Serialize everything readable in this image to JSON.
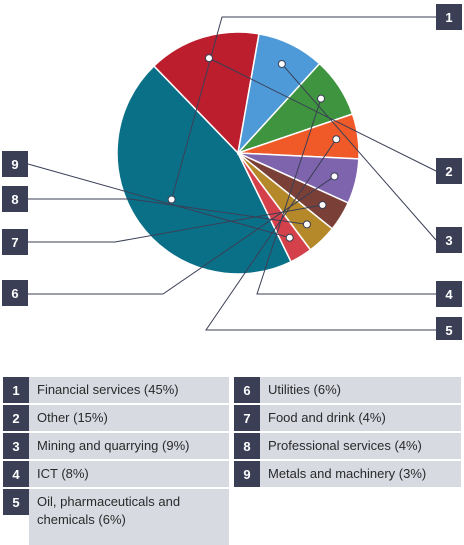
{
  "chart_data": {
    "type": "pie",
    "slices": [
      {
        "num": "1",
        "label": "Financial services (45%)",
        "value": 45,
        "color": "#0a7088"
      },
      {
        "num": "2",
        "label": "Other (15%)",
        "value": 15,
        "color": "#bd1e2d"
      },
      {
        "num": "3",
        "label": "Mining and quarrying (9%)",
        "value": 9,
        "color": "#4e9ad8"
      },
      {
        "num": "4",
        "label": "ICT (8%)",
        "value": 8,
        "color": "#3f9440"
      },
      {
        "num": "5",
        "label": "Oil, pharmaceuticals and chemicals (6%)",
        "value": 6,
        "color": "#f05a28"
      },
      {
        "num": "6",
        "label": "Utilities (6%)",
        "value": 6,
        "color": "#7e63ad"
      },
      {
        "num": "7",
        "label": "Food and drink (4%)",
        "value": 4,
        "color": "#7a4037"
      },
      {
        "num": "8",
        "label": "Professional services (4%)",
        "value": 4,
        "color": "#b5892a"
      },
      {
        "num": "9",
        "label": "Metals and machinery (3%)",
        "value": 3,
        "color": "#d4414b"
      }
    ],
    "legend_placement": "bottom"
  },
  "colors": {
    "badge": "#3a3f56",
    "legend_bg": "#d8dae2",
    "leader_line": "#3a3f56"
  }
}
